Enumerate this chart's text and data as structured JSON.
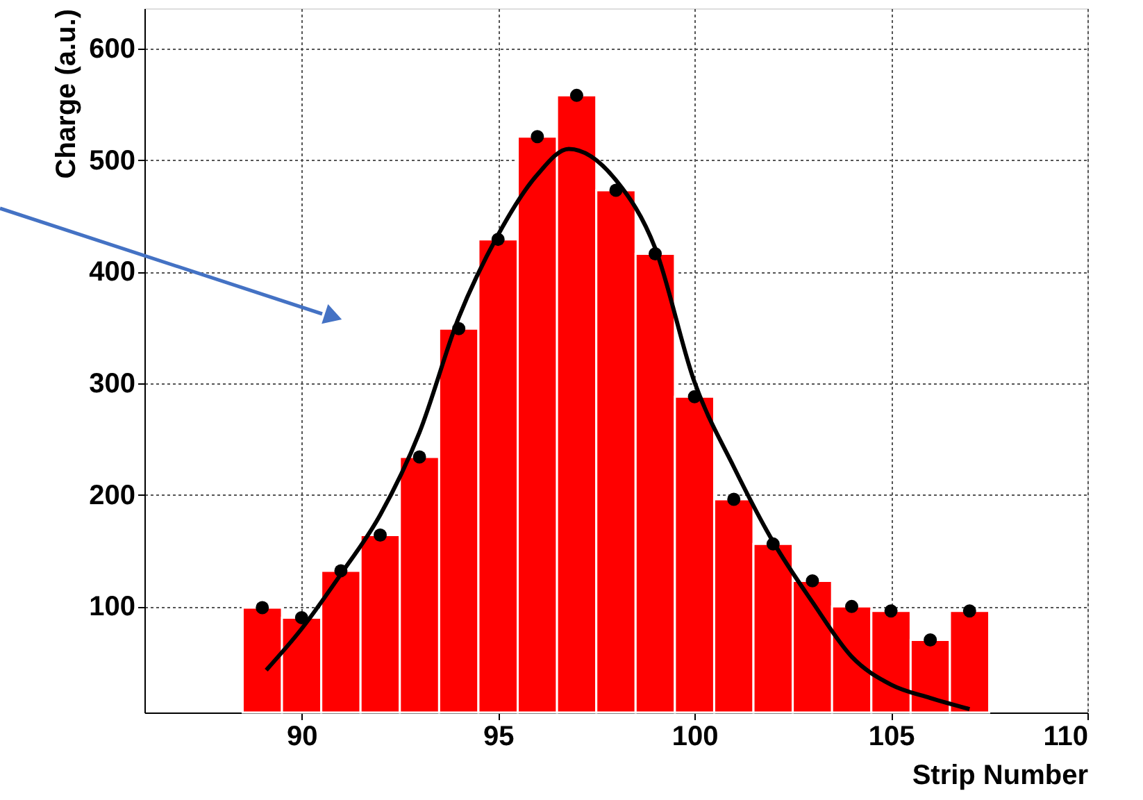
{
  "chart_data": {
    "type": "histogram",
    "xlabel": "Strip Number",
    "ylabel": "Charge (a.u.)",
    "bins": [
      88.5,
      89.5,
      90.5,
      91.5,
      92.5,
      93.5,
      94.5,
      95.5,
      96.5,
      97.5,
      98.5,
      99.5,
      100.5,
      101.5,
      102.5,
      103.5,
      104.5,
      105.5,
      106.5,
      107.5
    ],
    "values": [
      99,
      90,
      132,
      164,
      234,
      349,
      429,
      521,
      558,
      473,
      416,
      288,
      196,
      156,
      123,
      100,
      96,
      70,
      96
    ],
    "color": "#ff0000",
    "series": [
      {
        "type": "scatter",
        "marker": "circle",
        "color": "#000000",
        "x": [
          89,
          90,
          91,
          92,
          93,
          94,
          95,
          96,
          97,
          98,
          99,
          100,
          101,
          102,
          103,
          104,
          105,
          106,
          107
        ],
        "values": [
          99,
          90,
          132,
          164,
          234,
          349,
          429,
          521,
          558,
          473,
          416,
          288,
          196,
          156,
          123,
          100,
          96,
          70,
          96
        ]
      },
      {
        "type": "line",
        "marker": "none",
        "color": "#000000",
        "x": [
          89.1,
          90,
          91,
          92,
          93,
          94,
          95,
          96,
          96.8,
          98,
          99,
          100,
          101,
          102,
          103,
          104,
          105,
          106,
          107
        ],
        "values": [
          43,
          80,
          129,
          182,
          256,
          359,
          433,
          487,
          510,
          482,
          421,
          301,
          225,
          158,
          104,
          55,
          30,
          18,
          8
        ]
      }
    ],
    "xlim": [
      86,
      110
    ],
    "xticks": [
      90,
      95,
      100,
      105,
      110
    ],
    "ylim": [
      5,
      636
    ],
    "yticks": [
      100,
      200,
      300,
      400,
      500,
      600
    ],
    "grid": true
  }
}
